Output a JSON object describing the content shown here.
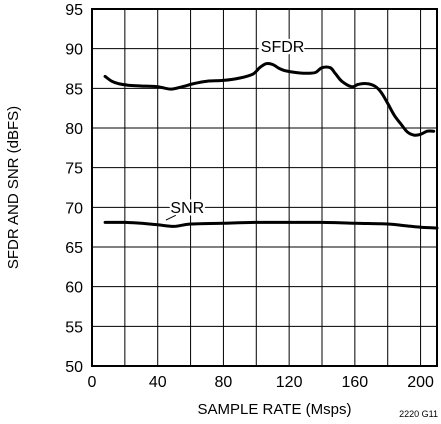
{
  "chart_data": {
    "type": "line",
    "title": "",
    "xlabel": "SAMPLE RATE (Msps)",
    "ylabel": "SFDR AND SNR (dBFS)",
    "xlim": [
      0,
      210
    ],
    "ylim": [
      50,
      95
    ],
    "x_ticks": [
      0,
      40,
      80,
      120,
      160,
      200
    ],
    "y_ticks": [
      50,
      55,
      60,
      65,
      70,
      75,
      80,
      85,
      90,
      95
    ],
    "grid": true,
    "x_grid_step": 20,
    "figure_id": "2220 G11",
    "line_color": "#000000",
    "series": [
      {
        "name": "SFDR",
        "x": [
          8,
          12,
          16,
          22,
          30,
          40,
          48,
          55,
          62,
          70,
          80,
          90,
          98,
          102,
          106,
          110,
          114,
          118,
          124,
          130,
          136,
          140,
          145,
          148,
          152,
          158,
          162,
          167,
          172,
          176,
          180,
          184,
          188,
          192,
          196,
          200,
          204,
          208
        ],
        "y": [
          86.5,
          85.9,
          85.6,
          85.4,
          85.3,
          85.2,
          84.9,
          85.2,
          85.6,
          85.9,
          86.0,
          86.3,
          86.8,
          87.6,
          88.1,
          88.0,
          87.5,
          87.2,
          87.0,
          86.9,
          87.0,
          87.6,
          87.6,
          86.9,
          85.9,
          85.2,
          85.5,
          85.6,
          85.3,
          84.5,
          83.1,
          81.6,
          80.5,
          79.5,
          79.1,
          79.2,
          79.6,
          79.6
        ]
      },
      {
        "name": "SNR",
        "x": [
          8,
          20,
          30,
          40,
          50,
          60,
          80,
          100,
          120,
          140,
          160,
          180,
          190,
          200,
          210
        ],
        "y": [
          68.1,
          68.1,
          68.0,
          67.8,
          67.6,
          67.9,
          68.0,
          68.1,
          68.1,
          68.1,
          68.0,
          67.9,
          67.7,
          67.5,
          67.4
        ]
      }
    ]
  }
}
